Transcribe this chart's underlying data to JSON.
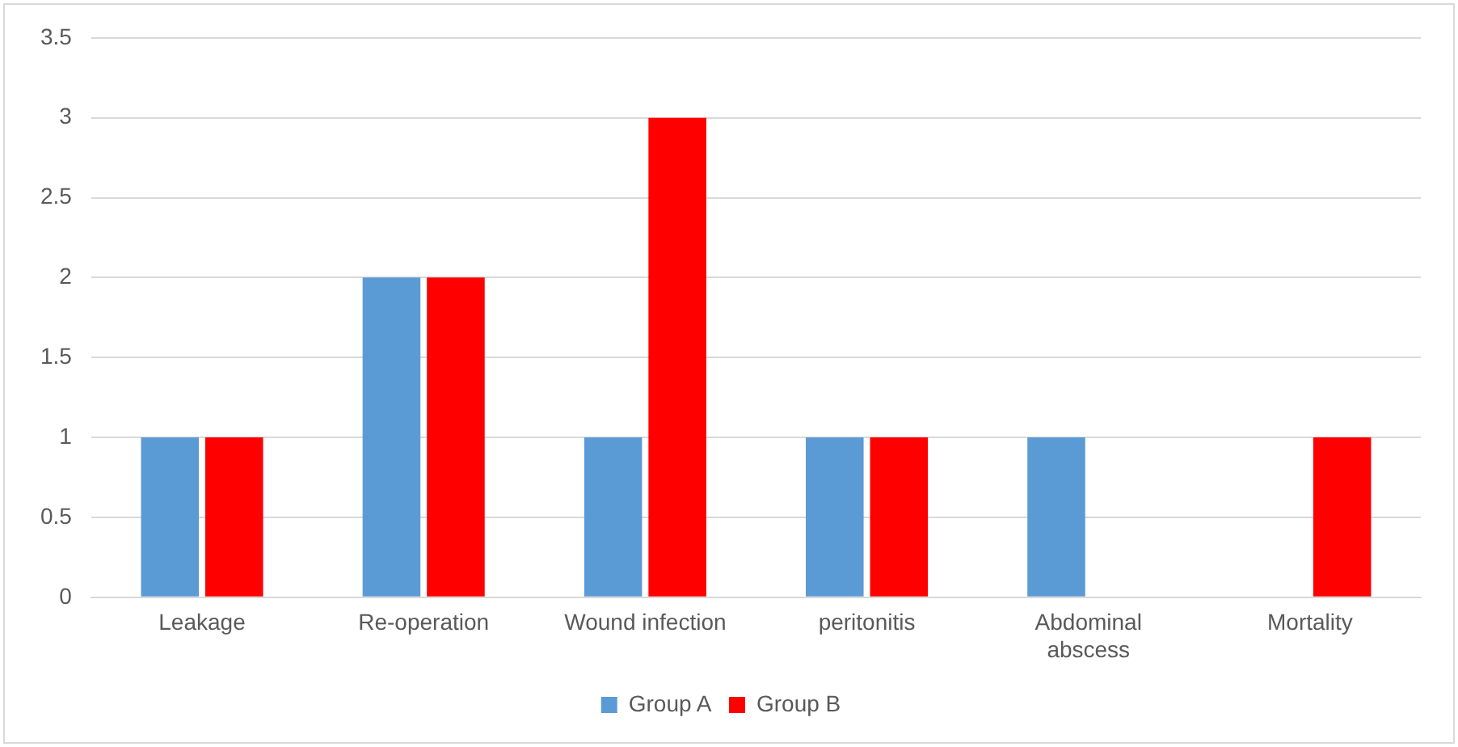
{
  "chart_data": {
    "type": "bar",
    "categories": [
      "Leakage",
      "Re-operation",
      "Wound infection",
      "peritonitis",
      "Abdominal abscess",
      "Mortality"
    ],
    "series": [
      {
        "name": "Group A",
        "color": "#5b9bd5",
        "values": [
          1,
          2,
          1,
          1,
          1,
          0
        ]
      },
      {
        "name": "Group B",
        "color": "#ff0000",
        "values": [
          1,
          2,
          3,
          1,
          0,
          1
        ]
      }
    ],
    "ylim": [
      0,
      3.5
    ],
    "yticks": [
      0,
      0.5,
      1,
      1.5,
      2,
      2.5,
      3,
      3.5
    ],
    "grid": "y",
    "legend": "bottom"
  }
}
